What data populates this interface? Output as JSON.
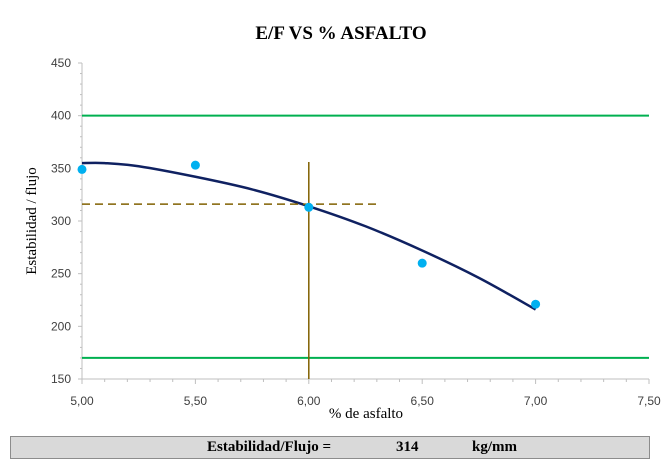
{
  "chart_data": {
    "type": "scatter",
    "title": "E/F VS % ASFALTO",
    "xlabel": "% de asfalto",
    "ylabel": "Estabilidad / flujo",
    "xlim": [
      5.0,
      7.5
    ],
    "ylim": [
      150,
      450
    ],
    "x_ticks": [
      "5,00",
      "5,50",
      "6,00",
      "6,50",
      "7,00",
      "7,50"
    ],
    "y_ticks": [
      "150",
      "200",
      "250",
      "300",
      "350",
      "400",
      "450"
    ],
    "grid": false,
    "legend": "none",
    "series": [
      {
        "kind": "points",
        "x": [
          5.0,
          5.5,
          6.0,
          6.5,
          7.0
        ],
        "y": [
          349,
          353,
          313,
          260,
          221
        ],
        "color": "#00b0f0"
      },
      {
        "kind": "fitted-curve",
        "x": [
          5.0,
          5.1,
          5.25,
          5.5,
          5.75,
          6.0,
          6.25,
          6.5,
          6.75,
          7.0
        ],
        "y": [
          355,
          355,
          352,
          342,
          330,
          314,
          295,
          272,
          246,
          216
        ],
        "color": "#0f2161"
      }
    ],
    "limits": [
      {
        "y": 400,
        "color": "#00b050"
      },
      {
        "y": 170,
        "color": "#00b050"
      }
    ],
    "reference_lines": [
      {
        "orientation": "vertical",
        "x": 6.0,
        "y_from": 150,
        "y_to": 356,
        "style": "solid",
        "color": "#806000"
      },
      {
        "orientation": "horizontal",
        "y": 316,
        "x_from": 5.0,
        "x_to": 6.3,
        "style": "dashed",
        "color": "#806000"
      }
    ]
  },
  "result": {
    "label": "Estabilidad/Flujo =",
    "value": "314",
    "unit": "kg/mm"
  }
}
